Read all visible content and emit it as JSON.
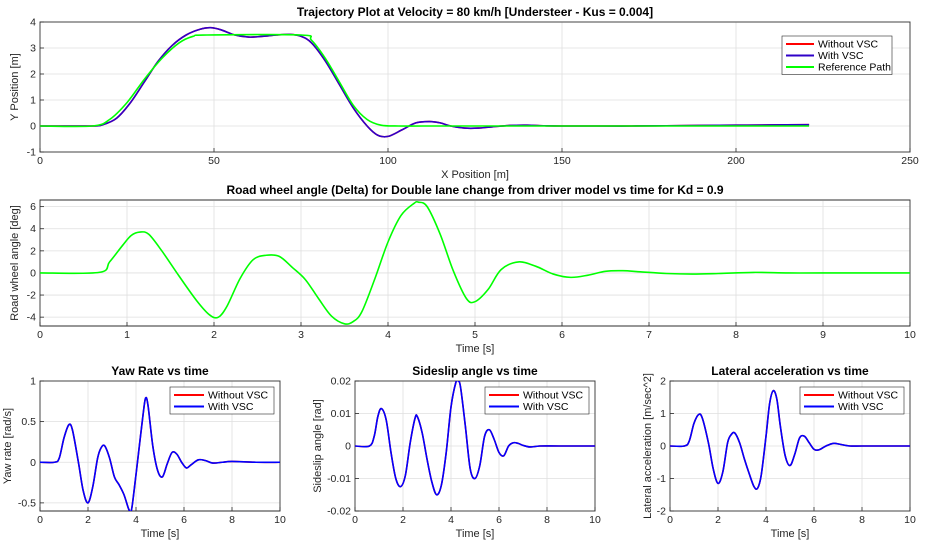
{
  "chart_data": [
    {
      "id": "traj",
      "type": "line",
      "title": "Trajectory Plot at Velocity = 80 km/h [Understeer - Kus = 0.004]",
      "xlabel": "X Position [m]",
      "ylabel": "Y Position [m]",
      "xlim": [
        0,
        250
      ],
      "ylim": [
        -1,
        4
      ],
      "xticks": [
        0,
        50,
        100,
        150,
        200,
        250
      ],
      "yticks": [
        -1,
        0,
        1,
        2,
        3,
        4
      ],
      "grid": true,
      "legend_position": "top-right",
      "series": [
        {
          "name": "Without VSC",
          "color": "#ff0000",
          "x": [
            0,
            15,
            18,
            22,
            26,
            30,
            34,
            38,
            42,
            46,
            49,
            52,
            56,
            60,
            64,
            68,
            72,
            75,
            78,
            82,
            86,
            90,
            94,
            97,
            100,
            104,
            108,
            112,
            115,
            118,
            122,
            126,
            130,
            135,
            140,
            145,
            150,
            160,
            170,
            180,
            190,
            200,
            210,
            221
          ],
          "y": [
            0,
            0,
            0.05,
            0.3,
            0.9,
            1.7,
            2.5,
            3.1,
            3.5,
            3.72,
            3.78,
            3.7,
            3.5,
            3.42,
            3.45,
            3.5,
            3.52,
            3.45,
            3.2,
            2.5,
            1.6,
            0.7,
            0,
            -0.35,
            -0.4,
            -0.15,
            0.12,
            0.17,
            0.12,
            0,
            -0.08,
            -0.08,
            -0.03,
            0.02,
            0.03,
            0.01,
            0,
            0,
            0,
            0.01,
            0.02,
            0.03,
            0.04,
            0.05
          ]
        },
        {
          "name": "With VSC",
          "color": "#2f00c8",
          "x": [
            0,
            15,
            18,
            22,
            26,
            30,
            34,
            38,
            42,
            46,
            49,
            52,
            56,
            60,
            64,
            68,
            72,
            75,
            78,
            82,
            86,
            90,
            94,
            97,
            100,
            104,
            108,
            112,
            115,
            118,
            122,
            126,
            130,
            135,
            140,
            145,
            150,
            160,
            170,
            180,
            190,
            200,
            210,
            221
          ],
          "y": [
            0,
            0,
            0.05,
            0.3,
            0.9,
            1.7,
            2.5,
            3.1,
            3.5,
            3.72,
            3.78,
            3.7,
            3.5,
            3.42,
            3.45,
            3.5,
            3.52,
            3.45,
            3.2,
            2.5,
            1.6,
            0.7,
            0,
            -0.35,
            -0.4,
            -0.15,
            0.12,
            0.17,
            0.12,
            0,
            -0.08,
            -0.08,
            -0.03,
            0.02,
            0.03,
            0.01,
            0,
            0,
            0,
            0.01,
            0.02,
            0.03,
            0.04,
            0.05
          ]
        },
        {
          "name": "Reference Path",
          "color": "#00ff00",
          "x": [
            0,
            15,
            20,
            25,
            30,
            35,
            40,
            44,
            48,
            75,
            78,
            82,
            86,
            90,
            94,
            98,
            103,
            110,
            120,
            150,
            200,
            221
          ],
          "y": [
            0,
            0,
            0.25,
            0.9,
            1.8,
            2.6,
            3.2,
            3.45,
            3.5,
            3.5,
            3.3,
            2.6,
            1.7,
            0.8,
            0.25,
            0.03,
            0,
            0,
            0,
            0,
            0,
            0
          ]
        }
      ]
    },
    {
      "id": "delta",
      "type": "line",
      "title": "Road wheel angle (Delta) for Double lane change from driver model vs time for Kd = 0.9",
      "xlabel": "Time [s]",
      "ylabel": "Road wheel angle [deg]",
      "xlim": [
        0,
        10
      ],
      "ylim": [
        -4.8,
        6.6
      ],
      "xticks": [
        0,
        1,
        2,
        3,
        4,
        5,
        6,
        7,
        8,
        9,
        10
      ],
      "yticks": [
        -4,
        -2,
        0,
        2,
        4,
        6
      ],
      "grid": true,
      "series": [
        {
          "name": "",
          "color": "#00ff00",
          "x": [
            0,
            0.68,
            0.8,
            0.95,
            1.05,
            1.15,
            1.25,
            1.4,
            1.6,
            1.8,
            1.95,
            2.05,
            2.15,
            2.3,
            2.45,
            2.6,
            2.75,
            2.9,
            3.05,
            3.2,
            3.35,
            3.5,
            3.6,
            3.7,
            3.85,
            4.0,
            4.15,
            4.3,
            4.35,
            4.45,
            4.6,
            4.75,
            4.9,
            5.0,
            5.15,
            5.3,
            5.5,
            5.7,
            5.9,
            6.1,
            6.3,
            6.5,
            6.7,
            6.9,
            7.2,
            7.5,
            7.8,
            8.2,
            8.6,
            9.0,
            9.5,
            10
          ],
          "y": [
            0,
            0.05,
            1.0,
            2.5,
            3.4,
            3.7,
            3.5,
            2.0,
            -0.3,
            -2.5,
            -3.8,
            -4.0,
            -3.0,
            -0.5,
            1.2,
            1.6,
            1.5,
            0.5,
            -0.6,
            -2.3,
            -3.9,
            -4.6,
            -4.4,
            -3.5,
            -0.5,
            2.8,
            5.2,
            6.3,
            6.4,
            6.0,
            3.5,
            0.2,
            -2.3,
            -2.6,
            -1.5,
            0.3,
            1.0,
            0.6,
            -0.1,
            -0.4,
            -0.2,
            0.15,
            0.2,
            0.1,
            -0.05,
            -0.1,
            -0.05,
            0.05,
            0,
            0,
            0,
            0
          ]
        }
      ]
    },
    {
      "id": "yaw",
      "type": "line",
      "title": "Yaw Rate vs time",
      "xlabel": "Time [s]",
      "ylabel": "Yaw rate [rad/s]",
      "xlim": [
        0,
        10
      ],
      "ylim": [
        -0.6,
        1
      ],
      "xticks": [
        0,
        2,
        4,
        6,
        8,
        10
      ],
      "yticks": [
        -0.5,
        0,
        0.5,
        1
      ],
      "grid": true,
      "legend_position": "top-right",
      "series": [
        {
          "name": "Without VSC",
          "color": "#ff0000",
          "x": [
            0,
            0.6,
            0.8,
            1.0,
            1.2,
            1.35,
            1.6,
            1.8,
            2.0,
            2.2,
            2.4,
            2.55,
            2.7,
            2.9,
            3.1,
            3.3,
            3.5,
            3.7,
            3.8,
            3.9,
            4.1,
            4.3,
            4.4,
            4.5,
            4.7,
            4.9,
            5.1,
            5.3,
            5.5,
            5.7,
            5.9,
            6.1,
            6.3,
            6.6,
            6.9,
            7.2,
            7.6,
            8,
            9,
            10
          ],
          "y": [
            0,
            0,
            0.05,
            0.3,
            0.46,
            0.4,
            0,
            -0.35,
            -0.5,
            -0.3,
            0.05,
            0.18,
            0.2,
            0.05,
            -0.18,
            -0.28,
            -0.4,
            -0.58,
            -0.6,
            -0.4,
            0.1,
            0.6,
            0.79,
            0.7,
            0.2,
            -0.1,
            -0.18,
            -0.02,
            0.12,
            0.1,
            0,
            -0.07,
            -0.03,
            0.03,
            0.02,
            -0.01,
            0,
            0.01,
            0,
            0
          ]
        },
        {
          "name": "With VSC",
          "color": "#0000ff",
          "x": [
            0,
            0.6,
            0.8,
            1.0,
            1.2,
            1.35,
            1.6,
            1.8,
            2.0,
            2.2,
            2.4,
            2.55,
            2.7,
            2.9,
            3.1,
            3.3,
            3.5,
            3.7,
            3.8,
            3.9,
            4.1,
            4.3,
            4.4,
            4.5,
            4.7,
            4.9,
            5.1,
            5.3,
            5.5,
            5.7,
            5.9,
            6.1,
            6.3,
            6.6,
            6.9,
            7.2,
            7.6,
            8,
            9,
            10
          ],
          "y": [
            0,
            0,
            0.05,
            0.3,
            0.46,
            0.4,
            0,
            -0.35,
            -0.5,
            -0.3,
            0.05,
            0.18,
            0.2,
            0.05,
            -0.18,
            -0.28,
            -0.4,
            -0.58,
            -0.6,
            -0.4,
            0.1,
            0.6,
            0.79,
            0.7,
            0.2,
            -0.1,
            -0.18,
            -0.02,
            0.12,
            0.1,
            0,
            -0.07,
            -0.03,
            0.03,
            0.02,
            -0.01,
            0,
            0.01,
            0,
            0
          ]
        }
      ]
    },
    {
      "id": "slip",
      "type": "line",
      "title": "Sideslip angle vs time",
      "xlabel": "Time [s]",
      "ylabel": "Sideslip angle [rad]",
      "xlim": [
        0,
        10
      ],
      "ylim": [
        -0.02,
        0.02
      ],
      "xticks": [
        0,
        2,
        4,
        6,
        8,
        10
      ],
      "yticks": [
        -0.02,
        -0.01,
        0,
        0.01,
        0.02
      ],
      "ytick_labels": [
        "-0.02",
        "-0.01",
        "0",
        "0.01",
        "0.02"
      ],
      "grid": true,
      "legend_position": "top-right",
      "series": [
        {
          "name": "Without VSC",
          "color": "#ff0000",
          "x": [
            0,
            0.6,
            0.8,
            0.95,
            1.1,
            1.3,
            1.5,
            1.7,
            1.9,
            2.1,
            2.3,
            2.5,
            2.6,
            2.8,
            3.0,
            3.2,
            3.4,
            3.6,
            3.8,
            4.0,
            4.2,
            4.3,
            4.4,
            4.6,
            4.8,
            5.0,
            5.2,
            5.4,
            5.6,
            5.8,
            6.0,
            6.2,
            6.4,
            6.6,
            6.8,
            7.0,
            7.3,
            7.7,
            8.5,
            10
          ],
          "y": [
            0,
            0,
            0.003,
            0.009,
            0.0115,
            0.008,
            -0.002,
            -0.01,
            -0.0125,
            -0.009,
            0.001,
            0.0085,
            0.009,
            0.004,
            -0.004,
            -0.011,
            -0.015,
            -0.012,
            -0.002,
            0.012,
            0.0195,
            0.02,
            0.018,
            0.006,
            -0.007,
            -0.01,
            -0.006,
            0.003,
            0.005,
            0.002,
            -0.002,
            -0.003,
            0,
            0.001,
            0.0008,
            0.0002,
            -0.0003,
            0,
            0,
            0
          ]
        },
        {
          "name": "With VSC",
          "color": "#0000ff",
          "x": [
            0,
            0.6,
            0.8,
            0.95,
            1.1,
            1.3,
            1.5,
            1.7,
            1.9,
            2.1,
            2.3,
            2.5,
            2.6,
            2.8,
            3.0,
            3.2,
            3.4,
            3.6,
            3.8,
            4.0,
            4.2,
            4.3,
            4.4,
            4.6,
            4.8,
            5.0,
            5.2,
            5.4,
            5.6,
            5.8,
            6.0,
            6.2,
            6.4,
            6.6,
            6.8,
            7.0,
            7.3,
            7.7,
            8.5,
            10
          ],
          "y": [
            0,
            0,
            0.003,
            0.009,
            0.0115,
            0.008,
            -0.002,
            -0.01,
            -0.0125,
            -0.009,
            0.001,
            0.0085,
            0.009,
            0.004,
            -0.004,
            -0.011,
            -0.015,
            -0.012,
            -0.002,
            0.012,
            0.0195,
            0.02,
            0.018,
            0.006,
            -0.007,
            -0.01,
            -0.006,
            0.003,
            0.005,
            0.002,
            -0.002,
            -0.003,
            0,
            0.001,
            0.0008,
            0.0002,
            -0.0003,
            0,
            0,
            0
          ]
        }
      ]
    },
    {
      "id": "latacc",
      "type": "line",
      "title": "Lateral acceleration vs time",
      "xlabel": "Time [s]",
      "ylabel": "Lateral acceleration [m/sec^2]",
      "xlim": [
        0,
        10
      ],
      "ylim": [
        -2,
        2
      ],
      "xticks": [
        0,
        2,
        4,
        6,
        8,
        10
      ],
      "yticks": [
        -2,
        -1,
        0,
        1,
        2
      ],
      "grid": true,
      "legend_position": "top-right",
      "series": [
        {
          "name": "Without VSC",
          "color": "#ff0000",
          "x": [
            0,
            0.6,
            0.8,
            1.0,
            1.2,
            1.35,
            1.6,
            1.8,
            2.0,
            2.2,
            2.4,
            2.55,
            2.7,
            2.9,
            3.1,
            3.3,
            3.5,
            3.65,
            3.8,
            4.0,
            4.15,
            4.3,
            4.45,
            4.6,
            4.8,
            5.0,
            5.2,
            5.4,
            5.6,
            5.8,
            6.0,
            6.2,
            6.5,
            6.8,
            7.1,
            7.5,
            8,
            9,
            10
          ],
          "y": [
            0,
            0,
            0.15,
            0.7,
            0.97,
            0.85,
            0.1,
            -0.7,
            -1.15,
            -0.8,
            0.1,
            0.35,
            0.4,
            0.1,
            -0.4,
            -0.85,
            -1.25,
            -1.3,
            -0.9,
            0.3,
            1.3,
            1.7,
            1.45,
            0.6,
            -0.3,
            -0.6,
            -0.25,
            0.25,
            0.3,
            0.1,
            -0.1,
            -0.12,
            0,
            0.08,
            0.05,
            0,
            0,
            0,
            0
          ]
        },
        {
          "name": "With VSC",
          "color": "#0000ff",
          "x": [
            0,
            0.6,
            0.8,
            1.0,
            1.2,
            1.35,
            1.6,
            1.8,
            2.0,
            2.2,
            2.4,
            2.55,
            2.7,
            2.9,
            3.1,
            3.3,
            3.5,
            3.65,
            3.8,
            4.0,
            4.15,
            4.3,
            4.45,
            4.6,
            4.8,
            5.0,
            5.2,
            5.4,
            5.6,
            5.8,
            6.0,
            6.2,
            6.5,
            6.8,
            7.1,
            7.5,
            8,
            9,
            10
          ],
          "y": [
            0,
            0,
            0.15,
            0.7,
            0.97,
            0.85,
            0.1,
            -0.7,
            -1.15,
            -0.8,
            0.1,
            0.35,
            0.4,
            0.1,
            -0.4,
            -0.85,
            -1.25,
            -1.3,
            -0.9,
            0.3,
            1.3,
            1.7,
            1.45,
            0.6,
            -0.3,
            -0.6,
            -0.25,
            0.25,
            0.3,
            0.1,
            -0.1,
            -0.12,
            0,
            0.08,
            0.05,
            0,
            0,
            0,
            0
          ]
        }
      ]
    }
  ]
}
